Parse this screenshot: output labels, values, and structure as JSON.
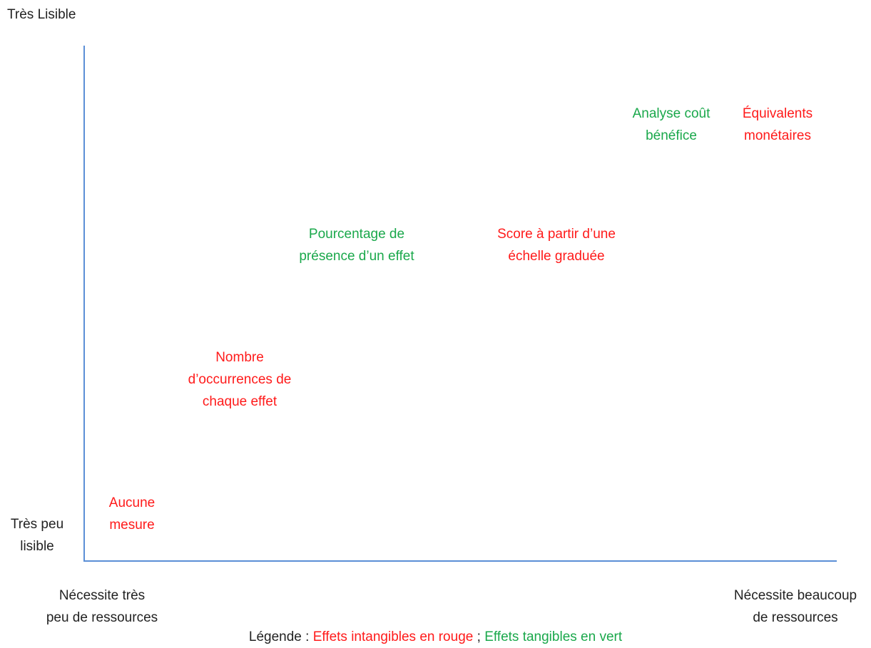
{
  "axes": {
    "y_top": "Très Lisible",
    "y_bottom": [
      "Très peu",
      "lisible"
    ],
    "x_left": [
      "Nécessite très",
      "peu de ressources"
    ],
    "x_right": [
      "Nécessite beaucoup",
      "de ressources"
    ]
  },
  "colors": {
    "intangible": "#ff1a1a",
    "tangible": "#1aa84b",
    "axis": "#5b8fd6",
    "text": "#222222"
  },
  "items": [
    {
      "id": "aucune-mesure",
      "type": "intangible",
      "lines": [
        "Aucune",
        "mesure"
      ]
    },
    {
      "id": "nombre-occurrences",
      "type": "intangible",
      "lines": [
        "Nombre",
        "d’occurrences de",
        "chaque effet"
      ]
    },
    {
      "id": "pourcentage-presence",
      "type": "tangible",
      "lines": [
        "Pourcentage de",
        "présence d’un effet"
      ]
    },
    {
      "id": "score-echelle",
      "type": "intangible",
      "lines": [
        "Score à partir d’une",
        "échelle graduée"
      ]
    },
    {
      "id": "analyse-cout-benefice",
      "type": "tangible",
      "lines": [
        "Analyse coût",
        "bénéfice"
      ]
    },
    {
      "id": "equivalents-monetaires",
      "type": "intangible",
      "lines": [
        "Équivalents",
        "monétaires"
      ]
    }
  ],
  "legend": {
    "prefix": "Légende : ",
    "intangible": "Effets intangibles en rouge",
    "separator": " ; ",
    "tangible": "Effets tangibles en vert"
  }
}
